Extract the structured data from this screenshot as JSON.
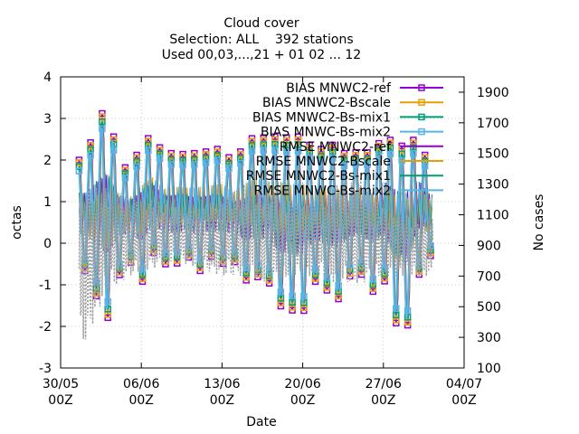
{
  "chart_data": {
    "type": "line",
    "title_lines": [
      "Cloud cover",
      "Selection: ALL    392 stations",
      "Used 00,03,...,21 + 01 02 ... 12"
    ],
    "xlabel": "Date",
    "ylabel": "octas",
    "y2label": "No cases",
    "xlim": [
      "2023-05-30",
      "2023-07-04"
    ],
    "ylim": [
      -3,
      4
    ],
    "y2lim": [
      100,
      2000
    ],
    "x_ticks": [
      {
        "date": "2023-05-30",
        "label1": "30/05",
        "label2": "00Z"
      },
      {
        "date": "2023-06-06",
        "label1": "06/06",
        "label2": "00Z"
      },
      {
        "date": "2023-06-13",
        "label1": "13/06",
        "label2": "00Z"
      },
      {
        "date": "2023-06-20",
        "label1": "20/06",
        "label2": "00Z"
      },
      {
        "date": "2023-06-27",
        "label1": "27/06",
        "label2": "00Z"
      },
      {
        "date": "2023-07-04",
        "label1": "04/07",
        "label2": "00Z"
      }
    ],
    "y_ticks": [
      -3,
      -2,
      -1,
      0,
      1,
      2,
      3,
      4
    ],
    "y2_ticks": [
      100,
      300,
      500,
      700,
      900,
      1100,
      1300,
      1500,
      1700,
      1900
    ],
    "grid": true,
    "legend_placement": "top-right",
    "series": [
      {
        "name": "BIAS MNWC2-ref",
        "color": "#9400d3",
        "marker": "square",
        "axis": "y"
      },
      {
        "name": "BIAS MNWC2-Bscale",
        "color": "#e69f00",
        "marker": "square",
        "axis": "y"
      },
      {
        "name": "BIAS MNWC2-Bs-mix1",
        "color": "#009e73",
        "marker": "square",
        "axis": "y"
      },
      {
        "name": "BIAS MNWC-Bs-mix2",
        "color": "#56b4e9",
        "marker": "square",
        "axis": "y"
      },
      {
        "name": "RMSE MNWC2-ref",
        "color": "#9400d3",
        "marker": "none",
        "axis": "y"
      },
      {
        "name": "RMSE MNWC2-Bscale",
        "color": "#e69f00",
        "marker": "none",
        "axis": "y"
      },
      {
        "name": "RMSE MNWC2-Bs-mix1",
        "color": "#009e73",
        "marker": "none",
        "axis": "y"
      },
      {
        "name": "RMSE MNWC-Bs-mix2",
        "color": "#56b4e9",
        "marker": "none",
        "axis": "y"
      },
      {
        "name": "",
        "color": "#a0a0a0",
        "marker": "none",
        "dash": "dotted",
        "axis": "y2"
      }
    ],
    "bias_envelope": {
      "x": [
        "2023-06-01",
        "2023-06-02",
        "2023-06-03",
        "2023-06-04",
        "2023-06-05",
        "2023-06-06",
        "2023-06-07",
        "2023-06-08",
        "2023-06-09",
        "2023-06-10",
        "2023-06-11",
        "2023-06-12",
        "2023-06-13",
        "2023-06-14",
        "2023-06-15",
        "2023-06-16",
        "2023-06-17",
        "2023-06-18",
        "2023-06-19",
        "2023-06-20",
        "2023-06-21",
        "2023-06-22",
        "2023-06-23",
        "2023-06-24",
        "2023-06-25",
        "2023-06-26",
        "2023-06-27",
        "2023-06-28",
        "2023-06-29",
        "2023-06-30",
        "2023-07-01"
      ],
      "max": [
        2.0,
        2.7,
        3.4,
        2.0,
        1.7,
        2.4,
        2.6,
        2.1,
        2.2,
        2.1,
        2.2,
        2.2,
        2.3,
        1.9,
        2.4,
        2.6,
        2.5,
        2.6,
        2.5,
        2.6,
        2.2,
        2.3,
        2.4,
        2.0,
        2.3,
        2.1,
        2.6,
        2.4,
        2.3,
        2.6,
        1.8
      ],
      "min": [
        -0.6,
        -1.2,
        -1.9,
        -0.8,
        -0.4,
        -1.0,
        -0.2,
        -0.5,
        -0.5,
        -0.3,
        -0.7,
        -0.3,
        -0.5,
        -0.4,
        -0.9,
        -0.8,
        -0.9,
        -1.5,
        -1.6,
        -1.7,
        -0.9,
        -1.1,
        -1.4,
        -0.8,
        -0.7,
        -1.2,
        -0.8,
        -1.9,
        -2.1,
        -0.8,
        -0.3
      ]
    },
    "no_cases_approx": {
      "x": [
        "2023-06-01",
        "2023-06-03",
        "2023-06-05",
        "2023-06-07",
        "2023-06-09",
        "2023-06-11",
        "2023-06-13",
        "2023-06-15",
        "2023-06-17",
        "2023-06-19",
        "2023-06-21",
        "2023-06-23",
        "2023-06-25",
        "2023-06-27",
        "2023-06-29",
        "2023-07-01"
      ],
      "max": [
        1250,
        1300,
        1200,
        1200,
        1150,
        1150,
        1200,
        1300,
        1250,
        1200,
        1200,
        1300,
        1350,
        1150,
        1100,
        1100
      ],
      "min": [
        250,
        600,
        700,
        750,
        800,
        750,
        700,
        700,
        650,
        700,
        700,
        650,
        650,
        700,
        700,
        700
      ]
    }
  }
}
